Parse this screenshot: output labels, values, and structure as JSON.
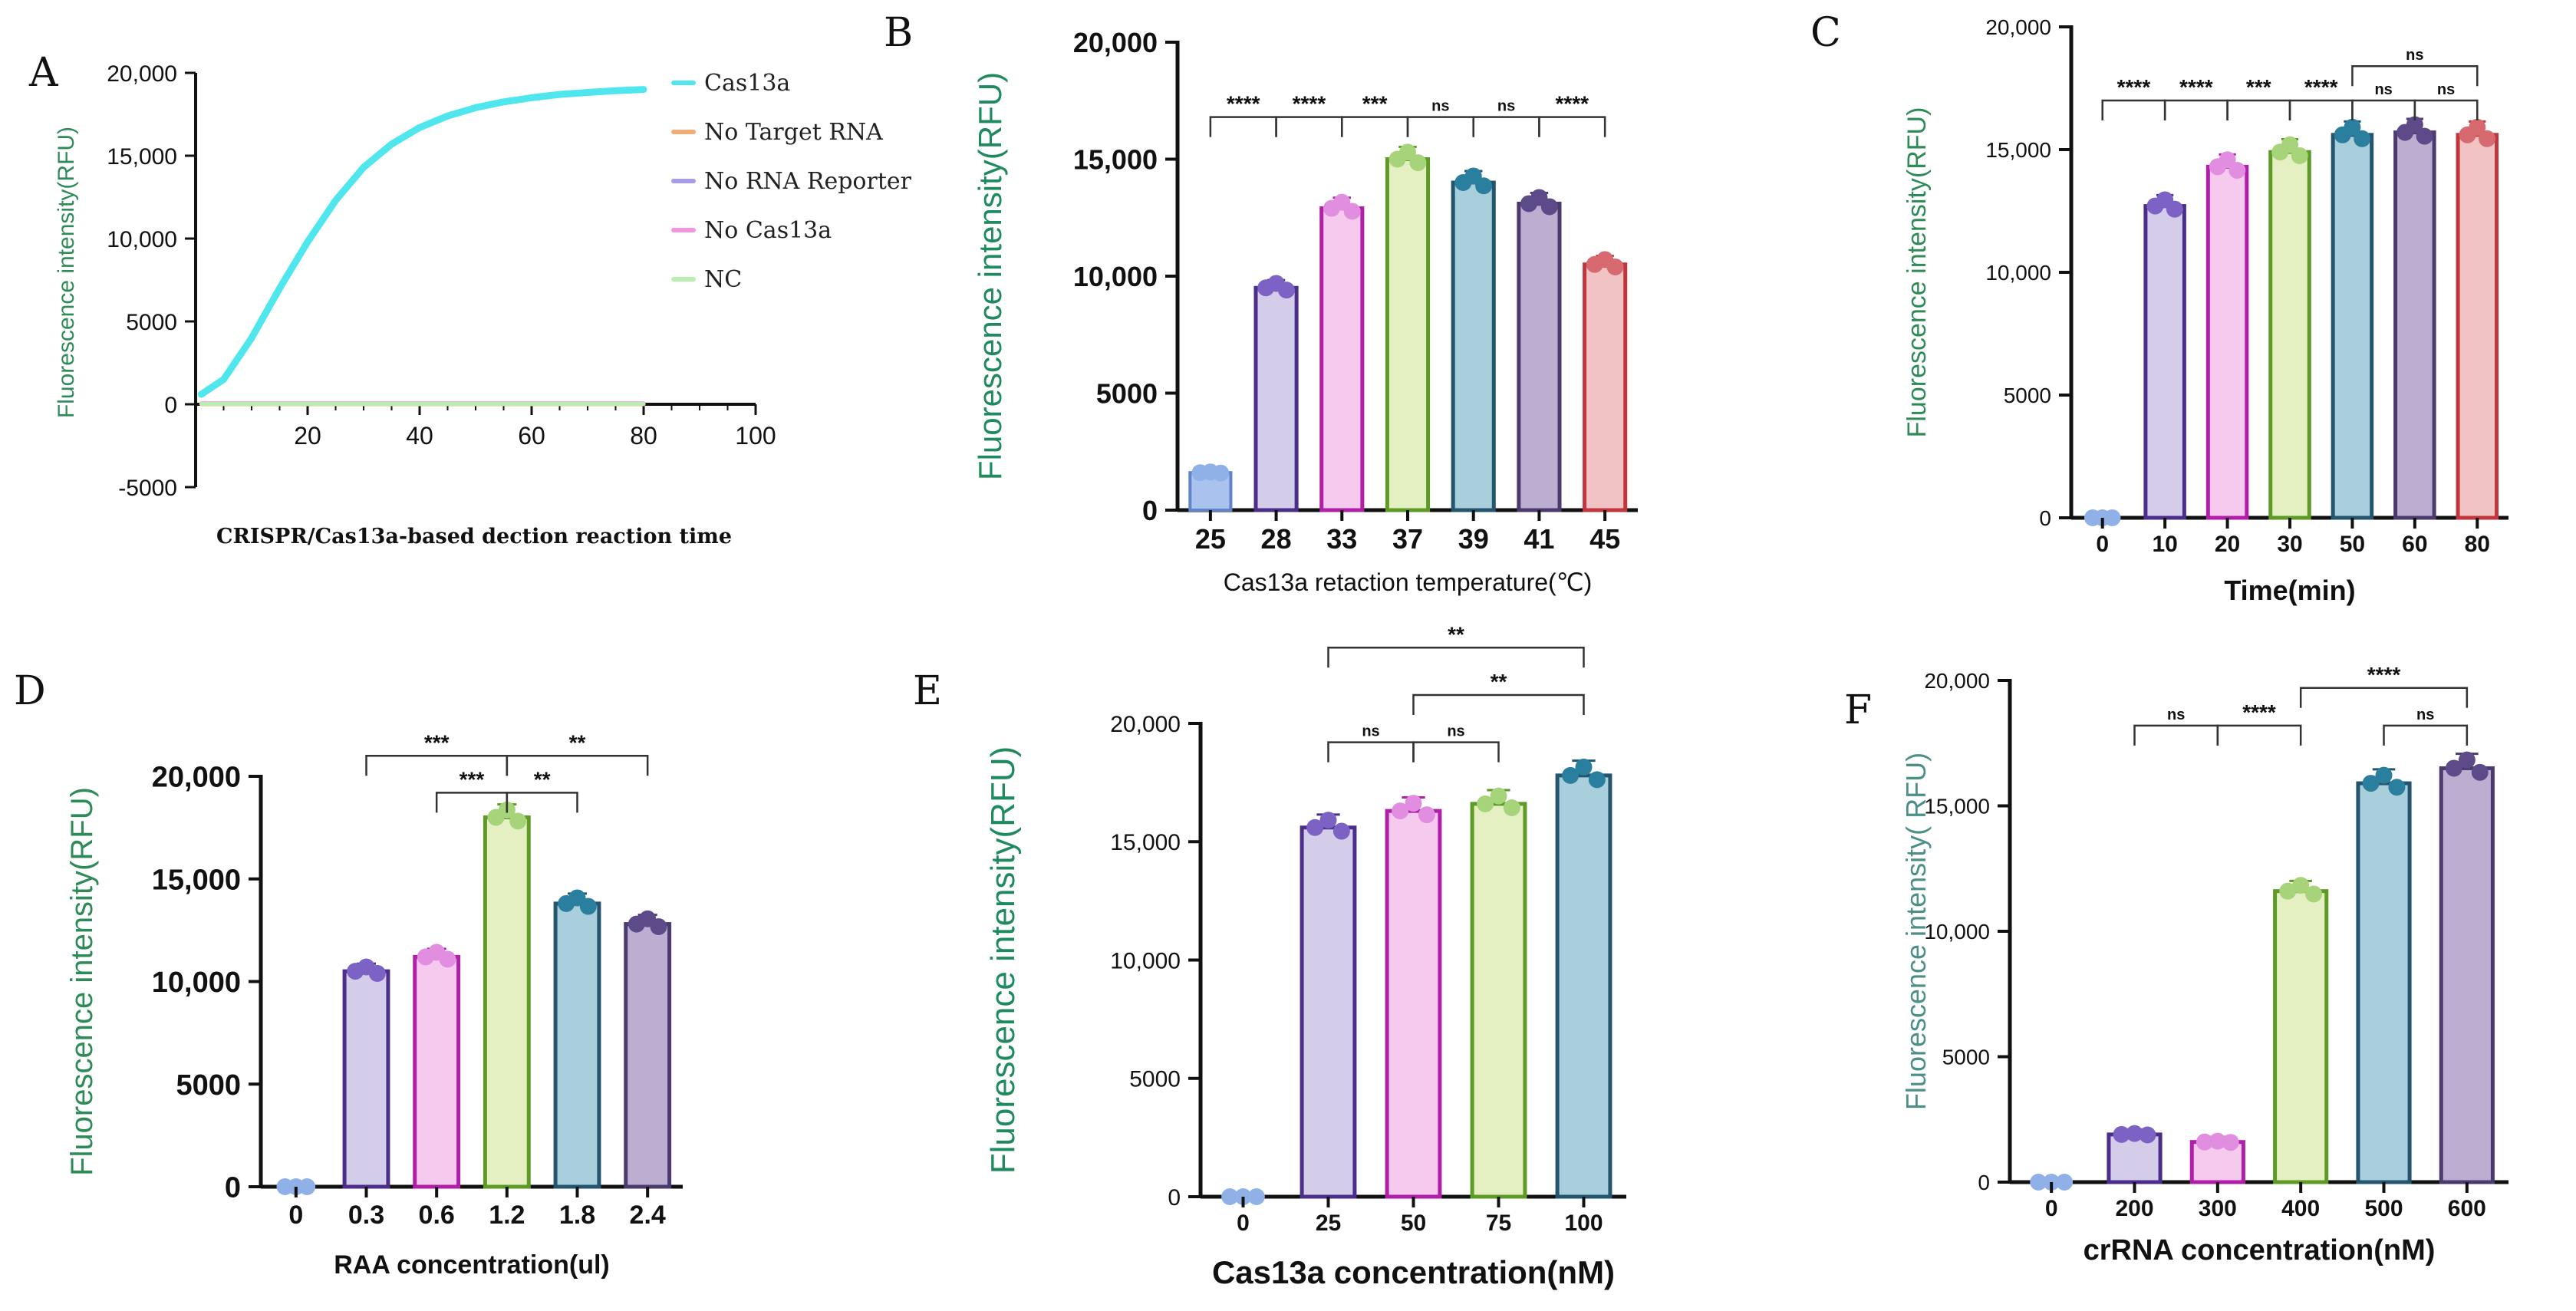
{
  "colors": {
    "axis": "#111111",
    "ylabel_green": "#2e8b57",
    "dot_blue": "#8fb1e8",
    "palette": [
      {
        "fill": "#d4cdea",
        "edge": "#4b2e8a",
        "dot": "#7c62c4"
      },
      {
        "fill": "#f6c9ef",
        "edge": "#b01fa8",
        "dot": "#e28ee0"
      },
      {
        "fill": "#e5f0c2",
        "edge": "#5e9a26",
        "dot": "#a7d47a"
      },
      {
        "fill": "#a9cfdd",
        "edge": "#23556f",
        "dot": "#2b7f9e"
      },
      {
        "fill": "#bcaed1",
        "edge": "#4b3a6d",
        "dot": "#5d4a88"
      },
      {
        "fill": "#f2c3c5",
        "edge": "#c0363c",
        "dot": "#d76a70"
      }
    ]
  },
  "chart_data": [
    {
      "letter": "A",
      "type": "line",
      "title": "",
      "xlabel": "CRISPR/Cas13a-based dection reaction time",
      "ylabel": "Fluorescence intensity(RFU)",
      "xlim": [
        0,
        100
      ],
      "ylim": [
        -5000,
        20000
      ],
      "xticks": [
        "20",
        "40",
        "60",
        "80",
        "100"
      ],
      "yticks": [
        "-5000",
        "0",
        "5000",
        "10,000",
        "15,000",
        "20,000"
      ],
      "legend": [
        "Cas13a",
        "No Target RNA",
        "No RNA Reporter",
        "No Cas13a",
        "NC"
      ],
      "legend_colors": [
        "#4fe6ee",
        "#f2ab74",
        "#a89be8",
        "#f394e4",
        "#b9efb0"
      ],
      "series": [
        {
          "name": "Cas13a",
          "x": [
            1,
            5,
            10,
            15,
            20,
            25,
            30,
            35,
            40,
            45,
            50,
            55,
            60,
            65,
            70,
            75,
            80
          ],
          "y": [
            600,
            1500,
            4000,
            7000,
            9800,
            12300,
            14300,
            15700,
            16700,
            17400,
            17900,
            18250,
            18500,
            18700,
            18820,
            18920,
            19000
          ]
        },
        {
          "name": "No Target RNA",
          "x": [
            1,
            80
          ],
          "y": [
            0,
            0
          ]
        },
        {
          "name": "No RNA Reporter",
          "x": [
            1,
            80
          ],
          "y": [
            30,
            30
          ]
        },
        {
          "name": "No Cas13a",
          "x": [
            1,
            80
          ],
          "y": [
            60,
            60
          ]
        },
        {
          "name": "NC",
          "x": [
            1,
            80
          ],
          "y": [
            20,
            20
          ]
        }
      ]
    },
    {
      "letter": "B",
      "type": "bar",
      "title": "",
      "xlabel": "Cas13a retaction temperature(℃)",
      "ylabel": "Fluorescence intensity(RFU)",
      "ylim": [
        0,
        20000
      ],
      "yticks": [
        "0",
        "5000",
        "10,000",
        "15,000",
        "20,000"
      ],
      "categories": [
        "25",
        "28",
        "33",
        "37",
        "39",
        "41",
        "45"
      ],
      "values": [
        1600,
        9500,
        12900,
        15000,
        14000,
        13100,
        10500
      ],
      "comparisons": [
        {
          "a": 0,
          "b": 1,
          "label": "****",
          "y": 16800
        },
        {
          "a": 1,
          "b": 2,
          "label": "****",
          "y": 16800
        },
        {
          "a": 2,
          "b": 3,
          "label": "***",
          "y": 16800
        },
        {
          "a": 3,
          "b": 4,
          "label": "ns",
          "y": 16800
        },
        {
          "a": 4,
          "b": 5,
          "label": "ns",
          "y": 16800
        },
        {
          "a": 5,
          "b": 6,
          "label": "****",
          "y": 16800
        }
      ]
    },
    {
      "letter": "C",
      "type": "bar",
      "title": "",
      "xlabel": "Time(min)",
      "ylabel": "Fluorescence intensity(RFU)",
      "ylim": [
        0,
        20000
      ],
      "yticks": [
        "0",
        "5000",
        "10,000",
        "15,000",
        "20,000"
      ],
      "categories": [
        "0",
        "10",
        "20",
        "30",
        "50",
        "60",
        "80"
      ],
      "values": [
        0,
        12700,
        14300,
        14900,
        15600,
        15700,
        15600
      ],
      "comparisons": [
        {
          "a": 0,
          "b": 1,
          "label": "****",
          "y": 17000
        },
        {
          "a": 1,
          "b": 2,
          "label": "****",
          "y": 17000
        },
        {
          "a": 2,
          "b": 3,
          "label": "***",
          "y": 17000
        },
        {
          "a": 3,
          "b": 4,
          "label": "****",
          "y": 17000
        },
        {
          "a": 4,
          "b": 5,
          "label": "ns",
          "y": 17000
        },
        {
          "a": 5,
          "b": 6,
          "label": "ns",
          "y": 17000
        },
        {
          "a": 4,
          "b": 6,
          "label": "ns",
          "y": 18400
        }
      ]
    },
    {
      "letter": "D",
      "type": "bar",
      "title": "",
      "xlabel": "RAA concentration(ul)",
      "ylabel": "Fluorescence intensity(RFU)",
      "ylim": [
        0,
        20000
      ],
      "yticks": [
        "0",
        "5000",
        "10,000",
        "15,000",
        "20,000"
      ],
      "categories": [
        "0",
        "0.3",
        "0.6",
        "1.2",
        "1.8",
        "2.4"
      ],
      "values": [
        0,
        10500,
        11200,
        18000,
        13800,
        12800
      ],
      "comparisons": [
        {
          "a": 1,
          "b": 3,
          "label": "***",
          "y": 21000
        },
        {
          "a": 2,
          "b": 3,
          "label": "***",
          "y": 19200
        },
        {
          "a": 3,
          "b": 4,
          "label": "**",
          "y": 19200
        },
        {
          "a": 3,
          "b": 5,
          "label": "**",
          "y": 21000
        }
      ]
    },
    {
      "letter": "E",
      "type": "bar",
      "title": "",
      "xlabel": "Cas13a concentration(nM)",
      "ylabel": "Fluorescence intensity(RFU)",
      "ylim": [
        0,
        20000
      ],
      "yticks": [
        "0",
        "5000",
        "10,000",
        "15,000",
        "20,000"
      ],
      "categories": [
        "0",
        "25",
        "50",
        "75",
        "100"
      ],
      "values": [
        0,
        15600,
        16300,
        16600,
        17800
      ],
      "comparisons": [
        {
          "a": 1,
          "b": 2,
          "label": "ns",
          "y": 19200
        },
        {
          "a": 2,
          "b": 3,
          "label": "ns",
          "y": 19200
        },
        {
          "a": 2,
          "b": 4,
          "label": "**",
          "y": 21200
        },
        {
          "a": 1,
          "b": 4,
          "label": "**",
          "y": 23200
        }
      ]
    },
    {
      "letter": "F",
      "type": "bar",
      "title": "",
      "xlabel": "crRNA concentration(nM)",
      "ylabel": "Fluorescence intensity( RFU)",
      "ylim": [
        0,
        20000
      ],
      "yticks": [
        "0",
        "5000",
        "10,000",
        "15,000",
        "20,000"
      ],
      "categories": [
        "0",
        "200",
        "300",
        "400",
        "500",
        "600"
      ],
      "values": [
        0,
        1900,
        1600,
        11600,
        15900,
        16500
      ],
      "comparisons": [
        {
          "a": 1,
          "b": 2,
          "label": "ns",
          "y": 18200
        },
        {
          "a": 2,
          "b": 3,
          "label": "****",
          "y": 18200
        },
        {
          "a": 3,
          "b": 5,
          "label": "****",
          "y": 19700
        },
        {
          "a": 4,
          "b": 5,
          "label": "ns",
          "y": 18200
        }
      ]
    }
  ]
}
